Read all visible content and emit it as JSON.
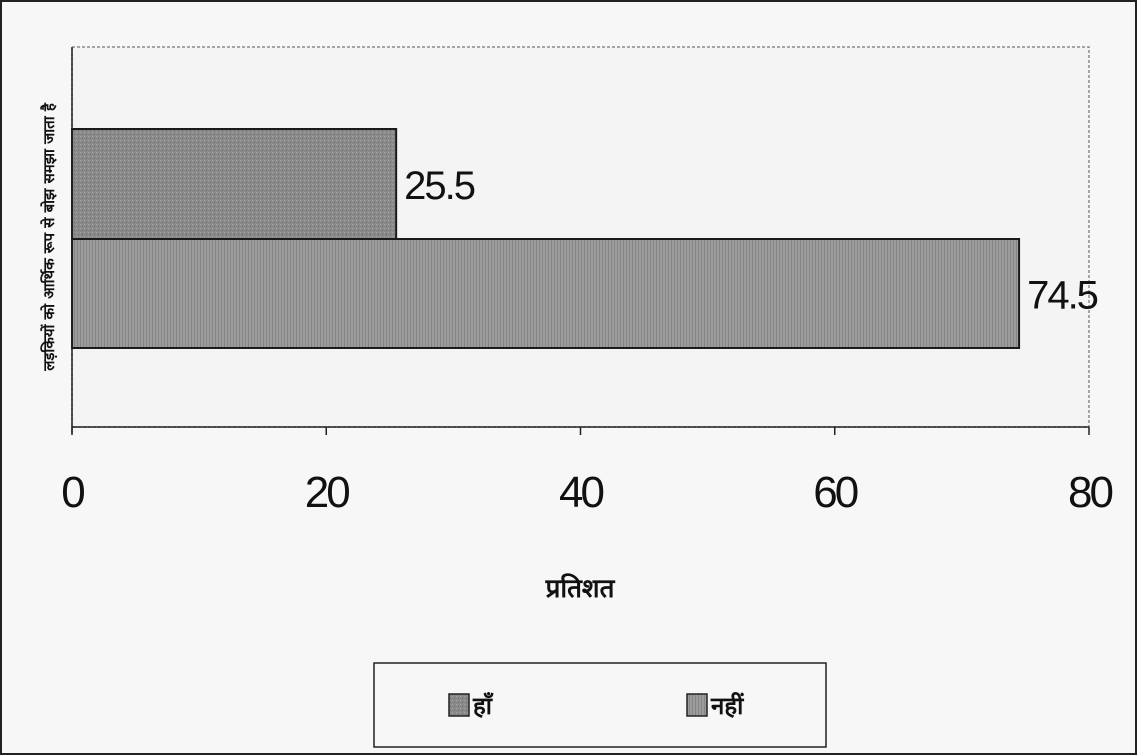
{
  "chart_data": {
    "type": "bar",
    "orientation": "horizontal",
    "categories": [
      "लड़कियों को आर्थिक रूप से बोझ समझा जाता है"
    ],
    "series": [
      {
        "name": "हाँ",
        "values": [
          25.5
        ],
        "color": "#8c8c8c"
      },
      {
        "name": "नहीं",
        "values": [
          74.5
        ],
        "color": "#9a9a9a"
      }
    ],
    "xlabel": "प्रतिशत",
    "ylabel": "लड़कियों को आर्थिक रूप से बोझ समझा जाता है",
    "xlim": [
      0,
      80
    ],
    "x_ticks": [
      0,
      20,
      40,
      60,
      80
    ],
    "data_labels": [
      "25.5",
      "74.5"
    ],
    "grid": false,
    "legend_position": "bottom"
  }
}
